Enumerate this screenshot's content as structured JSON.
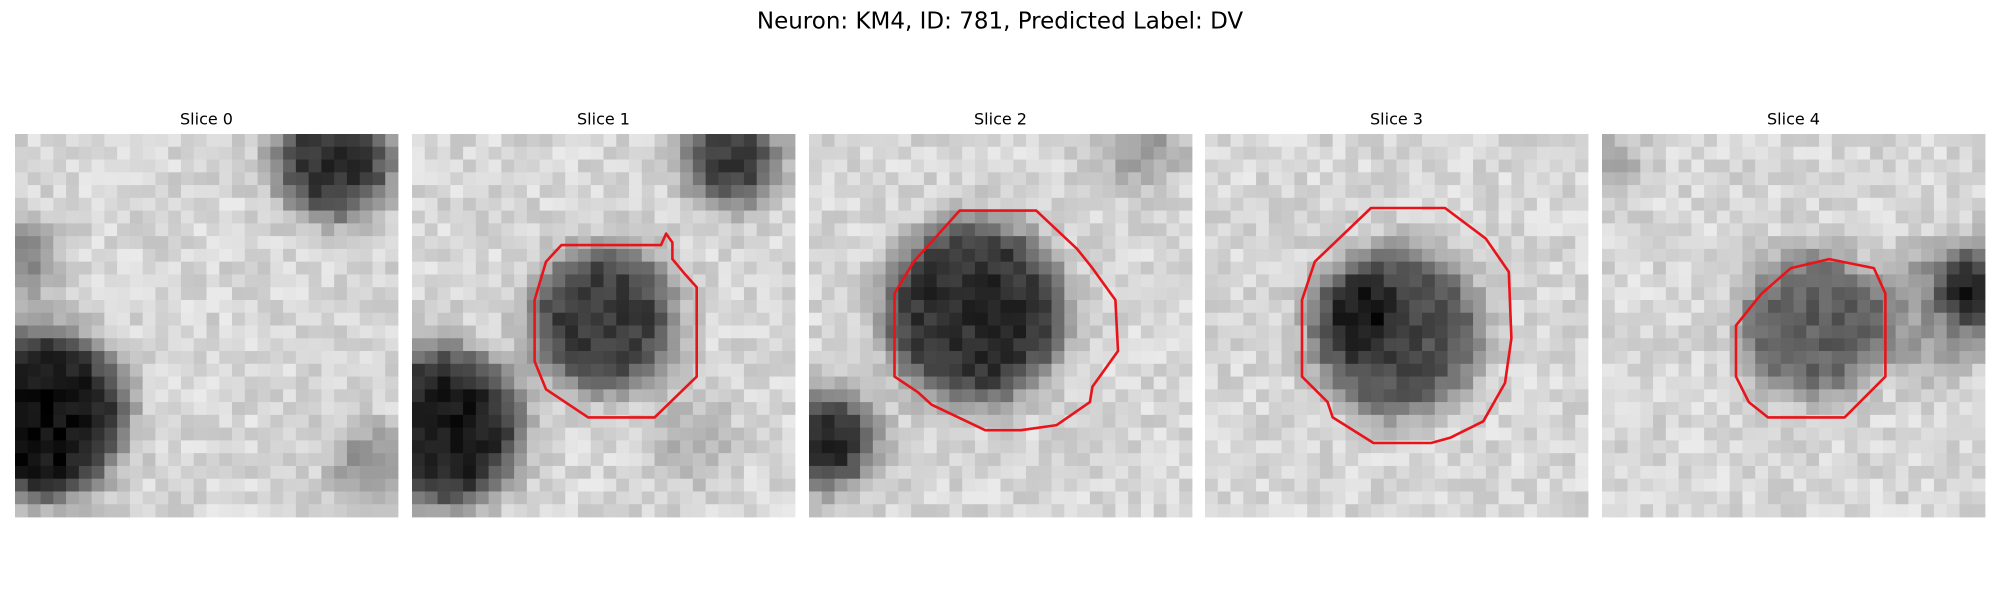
{
  "title": "Neuron: KM4, ID: 781, Predicted Label: DV",
  "panels": [
    {
      "title": "Slice 0"
    },
    {
      "title": "Slice 1"
    },
    {
      "title": "Slice 2"
    },
    {
      "title": "Slice 3"
    },
    {
      "title": "Slice 4"
    }
  ]
}
